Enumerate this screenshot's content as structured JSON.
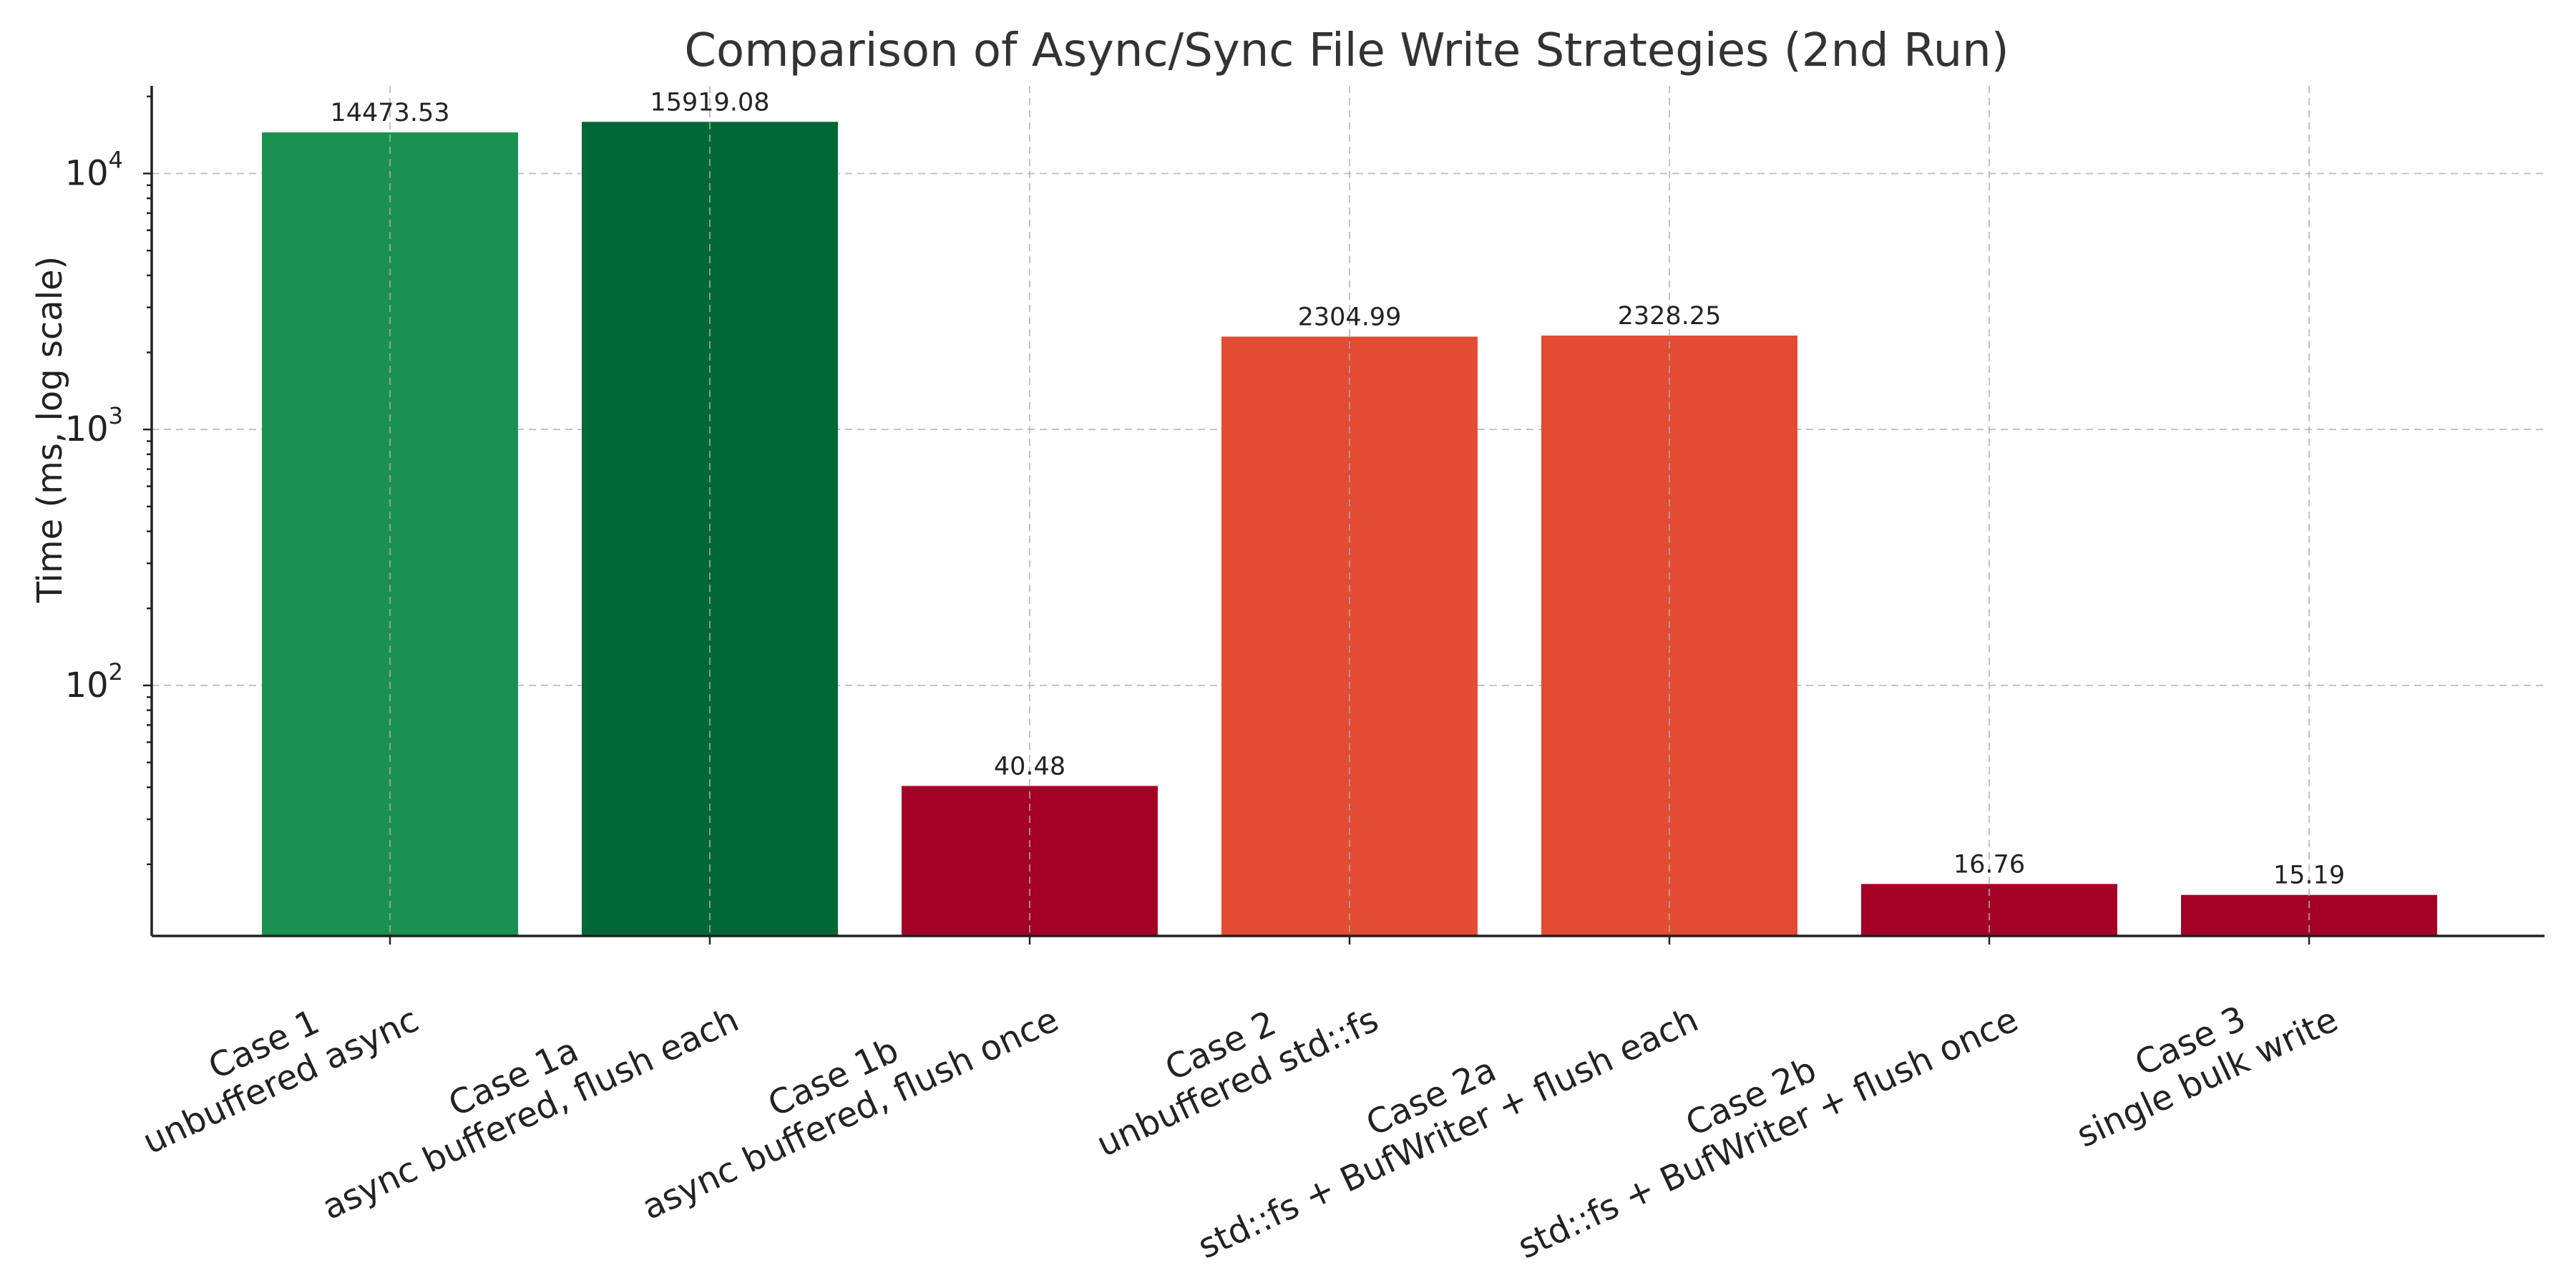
{
  "chart_data": {
    "type": "bar",
    "title": "Comparison of Async/Sync File Write Strategies (2nd Run)",
    "xlabel": "",
    "ylabel": "Time (ms, log scale)",
    "yscale": "log",
    "ylim": [
      10.5,
      22000
    ],
    "yticks": [
      {
        "base": "10",
        "exp": "2",
        "value": 100
      },
      {
        "base": "10",
        "exp": "3",
        "value": 1000
      },
      {
        "base": "10",
        "exp": "4",
        "value": 10000
      }
    ],
    "grid": true,
    "categories": [
      {
        "line1": "Case 1",
        "line2": "unbuffered async",
        "value": 14473.53,
        "label": "14473.53",
        "color": "#1a9150"
      },
      {
        "line1": "Case 1a",
        "line2": "async buffered, flush each",
        "value": 15919.08,
        "label": "15919.08",
        "color": "#006837"
      },
      {
        "line1": "Case 1b",
        "line2": "async buffered, flush once",
        "value": 40.48,
        "label": "40.48",
        "color": "#a50026"
      },
      {
        "line1": "Case 2",
        "line2": "unbuffered std::fs",
        "value": 2304.99,
        "label": "2304.99",
        "color": "#e34b33"
      },
      {
        "line1": "Case 2a",
        "line2": "std::fs + BufWriter + flush each",
        "value": 2328.25,
        "label": "2328.25",
        "color": "#e34b33"
      },
      {
        "line1": "Case 2b",
        "line2": "std::fs + BufWriter + flush once",
        "value": 16.76,
        "label": "16.76",
        "color": "#a50026"
      },
      {
        "line1": "Case 3",
        "line2": "single bulk write",
        "value": 15.19,
        "label": "15.19",
        "color": "#a50026"
      }
    ]
  }
}
